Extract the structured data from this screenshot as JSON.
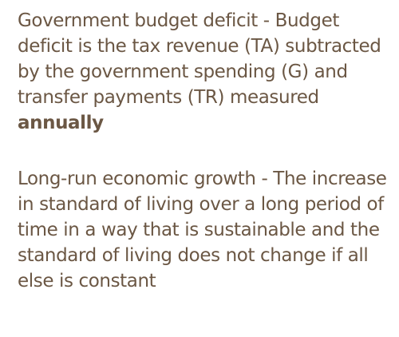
{
  "definitions": [
    {
      "text": "Government budget deficit - Budget deficit is the tax revenue (TA) subtracted by the government spending (G) and transfer payments (TR) measured ",
      "emphasis": "annually"
    },
    {
      "text": "Long-run economic growth - The increase in standard of living over a long period of time in a way that is sustainable and the standard of living does not change if all else is constant"
    }
  ]
}
